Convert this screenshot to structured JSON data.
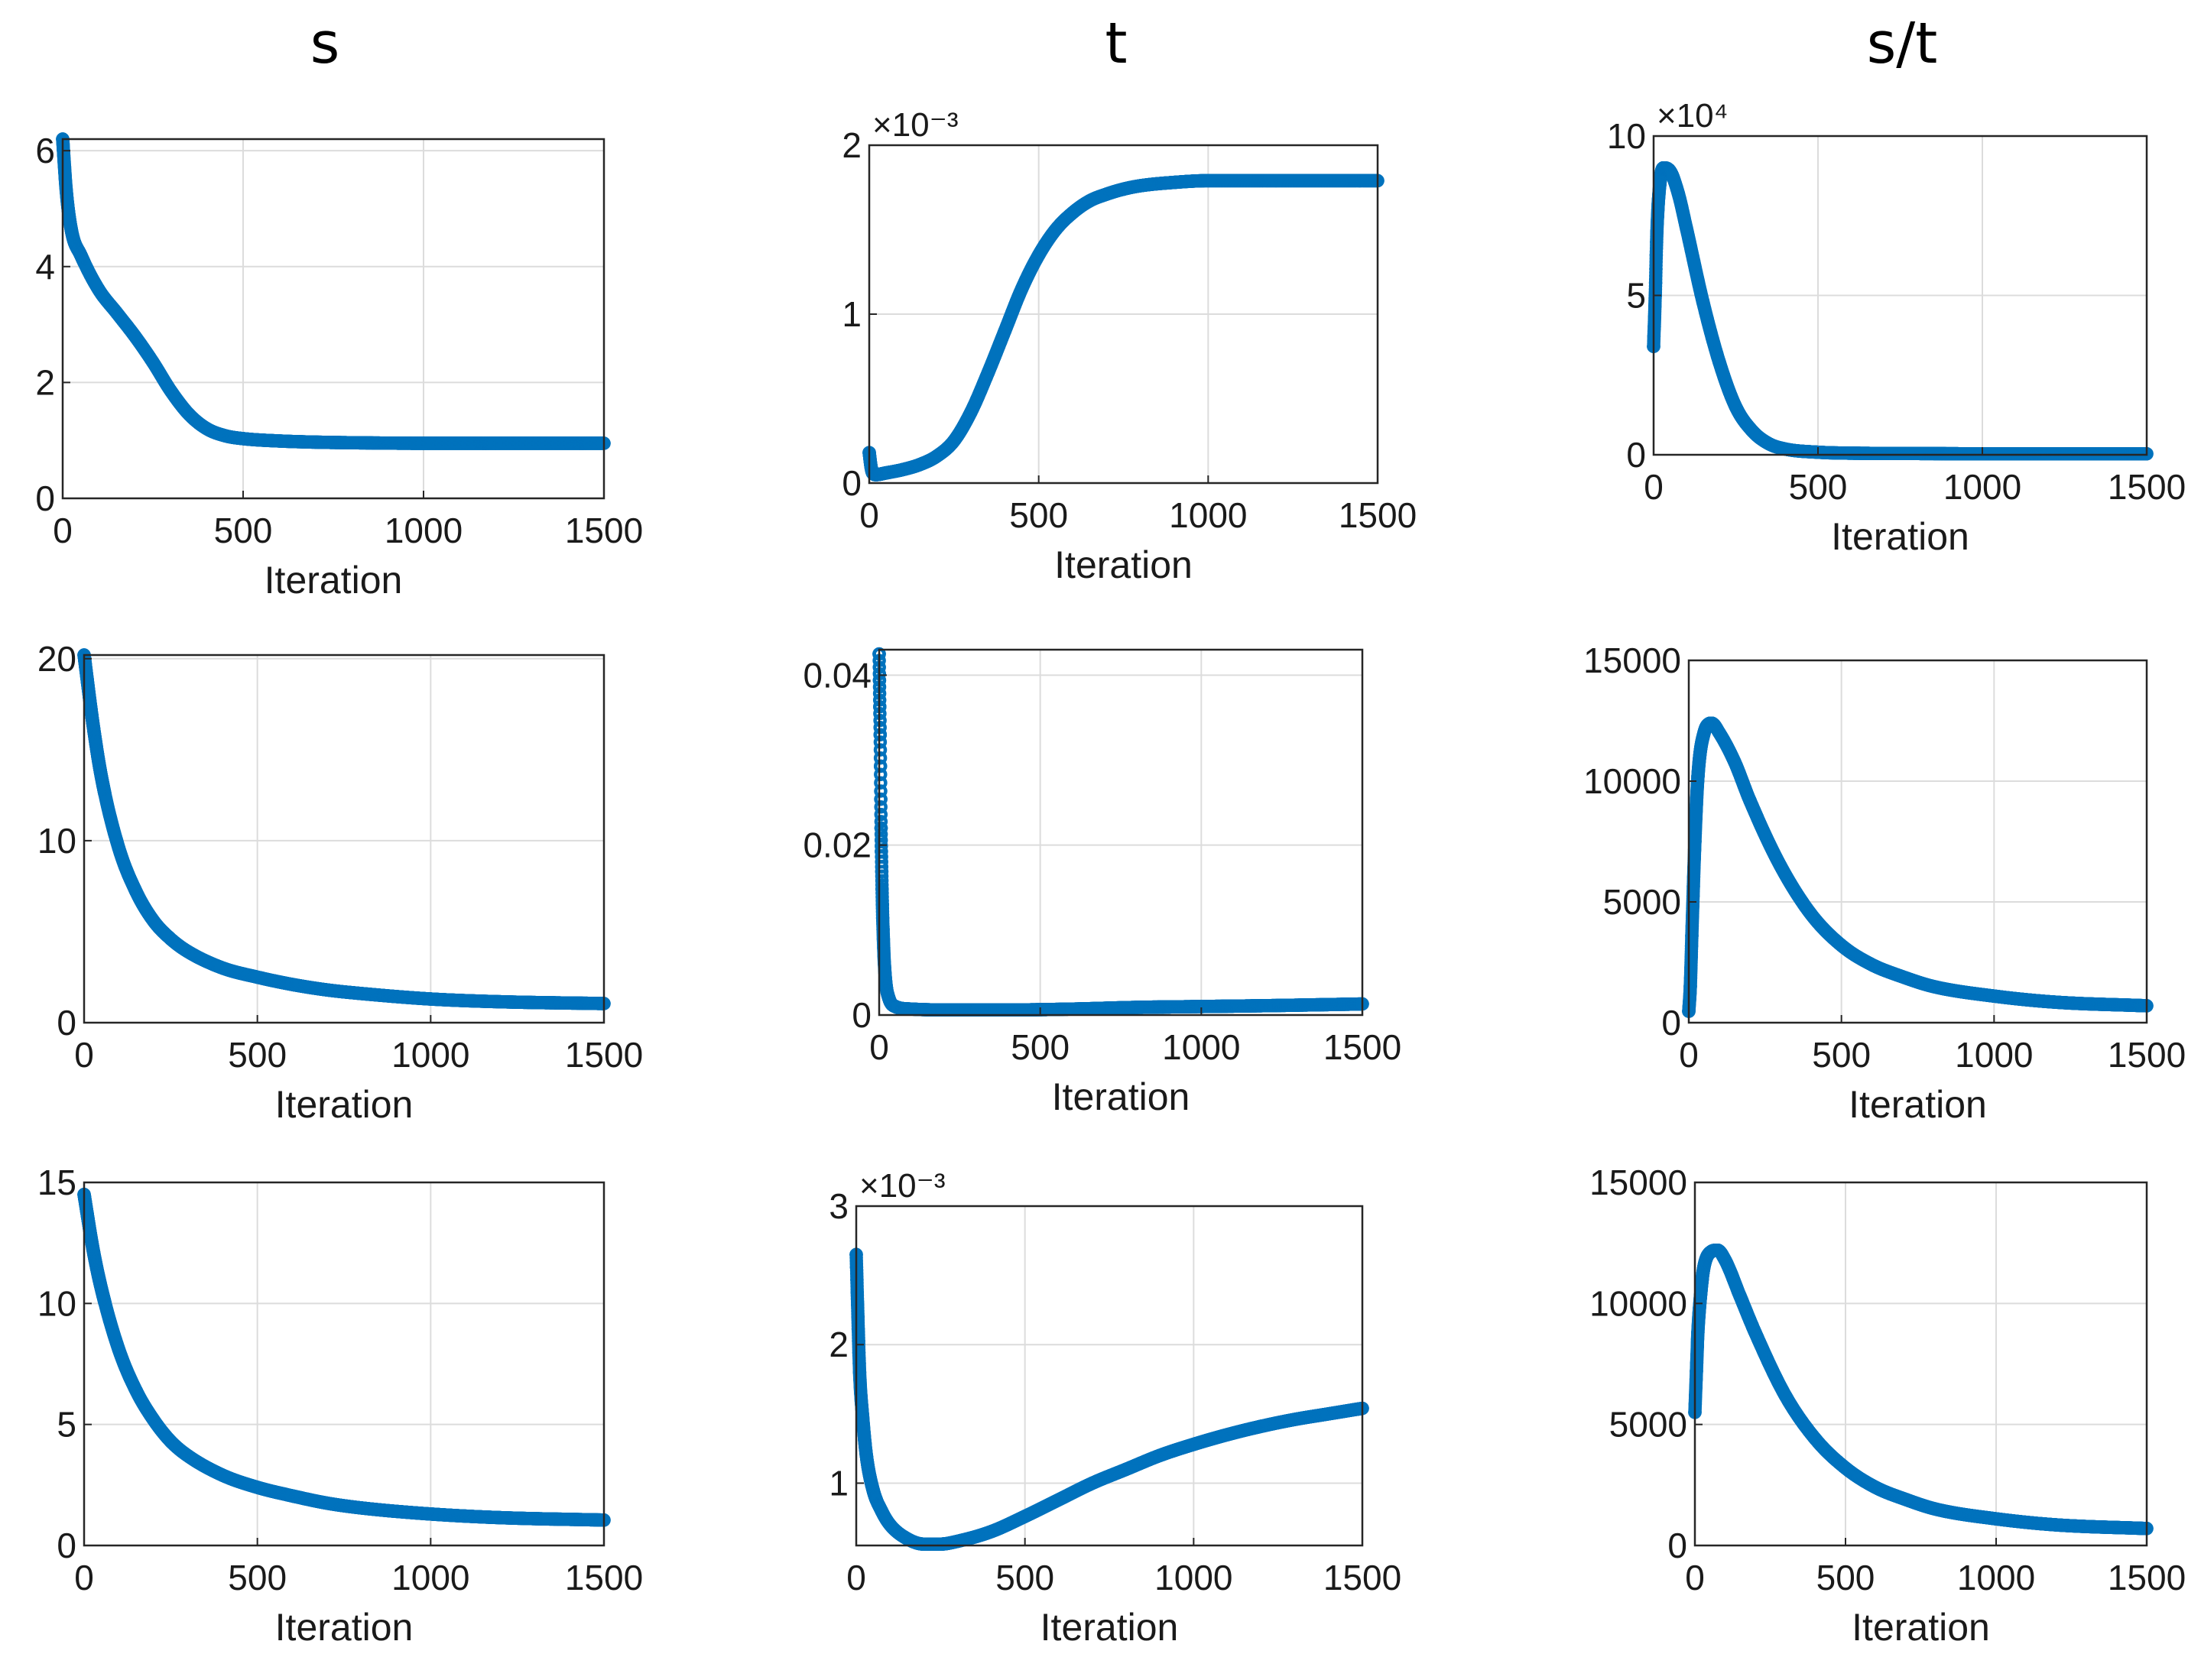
{
  "column_titles": [
    "s",
    "t",
    "s/t"
  ],
  "series_color": "#0072BD",
  "chart_data": [
    {
      "type": "scatter",
      "title": "s",
      "row": 1,
      "col": 1,
      "xlabel": "Iteration",
      "ylabel": "",
      "xlim": [
        0,
        1500
      ],
      "ylim": [
        0,
        6.2
      ],
      "xticks": [
        0,
        500,
        1000,
        1500
      ],
      "yticks": [
        0,
        2,
        4,
        6
      ],
      "ytick_labels": [
        "0",
        "2",
        "4",
        "6"
      ],
      "exponent_label": "",
      "grid": true,
      "x": [
        0,
        10,
        25,
        50,
        100,
        150,
        200,
        250,
        300,
        350,
        400,
        450,
        500,
        600,
        700,
        800,
        1000,
        1200,
        1500
      ],
      "y": [
        6.2,
        5.3,
        4.6,
        4.2,
        3.6,
        3.2,
        2.8,
        2.35,
        1.85,
        1.45,
        1.2,
        1.08,
        1.03,
        0.99,
        0.97,
        0.96,
        0.95,
        0.95,
        0.95
      ]
    },
    {
      "type": "scatter",
      "title": "t",
      "row": 1,
      "col": 2,
      "xlabel": "Iteration",
      "ylabel": "",
      "xlim": [
        0,
        1500
      ],
      "ylim": [
        0,
        2
      ],
      "xticks": [
        0,
        500,
        1000,
        1500
      ],
      "yticks": [
        0,
        1,
        2
      ],
      "ytick_labels": [
        "0",
        "1",
        "2"
      ],
      "exponent_label": "×10⁻³",
      "grid": true,
      "x": [
        0,
        5,
        10,
        20,
        50,
        100,
        150,
        200,
        250,
        300,
        350,
        400,
        450,
        500,
        550,
        600,
        650,
        700,
        750,
        800,
        900,
        1000,
        1200,
        1500
      ],
      "y": [
        0.18,
        0.1,
        0.06,
        0.05,
        0.06,
        0.08,
        0.11,
        0.16,
        0.25,
        0.42,
        0.65,
        0.9,
        1.15,
        1.35,
        1.5,
        1.6,
        1.67,
        1.71,
        1.74,
        1.76,
        1.78,
        1.79,
        1.79,
        1.79
      ]
    },
    {
      "type": "scatter",
      "title": "s/t",
      "row": 1,
      "col": 3,
      "xlabel": "Iteration",
      "ylabel": "",
      "xlim": [
        0,
        1500
      ],
      "ylim": [
        0,
        10
      ],
      "xticks": [
        0,
        500,
        1000,
        1500
      ],
      "yticks": [
        0,
        5,
        10
      ],
      "ytick_labels": [
        "0",
        "5",
        "10"
      ],
      "exponent_label": "×10⁴",
      "grid": true,
      "x": [
        0,
        5,
        10,
        20,
        30,
        50,
        75,
        100,
        150,
        200,
        250,
        300,
        350,
        400,
        500,
        600,
        800,
        1000,
        1200,
        1500
      ],
      "y": [
        3.4,
        5,
        7,
        8.6,
        9,
        8.9,
        8.2,
        7.1,
        4.8,
        2.9,
        1.5,
        0.75,
        0.35,
        0.18,
        0.08,
        0.05,
        0.04,
        0.03,
        0.03,
        0.03
      ]
    },
    {
      "type": "scatter",
      "title": "s",
      "row": 2,
      "col": 1,
      "xlabel": "Iteration",
      "ylabel": "",
      "xlim": [
        0,
        1500
      ],
      "ylim": [
        0,
        20.2
      ],
      "xticks": [
        0,
        500,
        1000,
        1500
      ],
      "yticks": [
        0,
        10,
        20
      ],
      "ytick_labels": [
        "0",
        "10",
        "20"
      ],
      "exponent_label": "",
      "grid": true,
      "x": [
        0,
        25,
        50,
        100,
        150,
        200,
        250,
        300,
        400,
        500,
        600,
        700,
        800,
        1000,
        1200,
        1500
      ],
      "y": [
        20.2,
        16.5,
        13.5,
        9.6,
        7.2,
        5.6,
        4.6,
        3.9,
        3.0,
        2.5,
        2.1,
        1.8,
        1.6,
        1.3,
        1.15,
        1.05
      ]
    },
    {
      "type": "scatter",
      "title": "t",
      "row": 2,
      "col": 2,
      "xlabel": "Iteration",
      "ylabel": "",
      "xlim": [
        0,
        1500
      ],
      "ylim": [
        0,
        0.043
      ],
      "xticks": [
        0,
        500,
        1000,
        1500
      ],
      "yticks": [
        0,
        0.02,
        0.04
      ],
      "ytick_labels": [
        "0",
        "0.02",
        "0.04"
      ],
      "exponent_label": "",
      "grid": true,
      "x": [
        0,
        3,
        6,
        10,
        15,
        20,
        30,
        50,
        100,
        200,
        400,
        600,
        800,
        1000,
        1200,
        1500
      ],
      "y": [
        0.0425,
        0.033,
        0.022,
        0.013,
        0.007,
        0.004,
        0.002,
        0.001,
        0.0007,
        0.0006,
        0.0006,
        0.0007,
        0.0009,
        0.001,
        0.0011,
        0.0013
      ]
    },
    {
      "type": "scatter",
      "title": "s/t",
      "row": 2,
      "col": 3,
      "xlabel": "Iteration",
      "ylabel": "",
      "xlim": [
        0,
        1500
      ],
      "ylim": [
        0,
        15000
      ],
      "xticks": [
        0,
        500,
        1000,
        1500
      ],
      "yticks": [
        0,
        5000,
        10000,
        15000
      ],
      "ytick_labels": [
        "0",
        "5000",
        "10000",
        "15000"
      ],
      "exponent_label": "",
      "grid": true,
      "x": [
        0,
        5,
        10,
        20,
        30,
        50,
        75,
        100,
        150,
        200,
        300,
        400,
        500,
        600,
        700,
        800,
        1000,
        1200,
        1500
      ],
      "y": [
        470,
        1500,
        3600,
        7500,
        10200,
        12000,
        12400,
        12000,
        10800,
        9200,
        6500,
        4500,
        3200,
        2400,
        1900,
        1500,
        1100,
        850,
        700
      ]
    },
    {
      "type": "scatter",
      "title": "s",
      "row": 3,
      "col": 1,
      "xlabel": "Iteration",
      "ylabel": "",
      "xlim": [
        0,
        1500
      ],
      "ylim": [
        0,
        15
      ],
      "xticks": [
        0,
        500,
        1000,
        1500
      ],
      "yticks": [
        0,
        5,
        10,
        15
      ],
      "ytick_labels": [
        "0",
        "5",
        "10",
        "15"
      ],
      "exponent_label": "",
      "grid": true,
      "x": [
        0,
        25,
        50,
        100,
        150,
        200,
        250,
        300,
        400,
        500,
        600,
        700,
        800,
        1000,
        1200,
        1500
      ],
      "y": [
        14.5,
        12.3,
        10.6,
        8.1,
        6.4,
        5.2,
        4.3,
        3.7,
        2.9,
        2.4,
        2.05,
        1.75,
        1.55,
        1.3,
        1.15,
        1.05
      ]
    },
    {
      "type": "scatter",
      "title": "t",
      "row": 3,
      "col": 2,
      "xlabel": "Iteration",
      "ylabel": "",
      "xlim": [
        0,
        1500
      ],
      "ylim": [
        0.55,
        3
      ],
      "xticks": [
        0,
        500,
        1000,
        1500
      ],
      "yticks": [
        1,
        2,
        3
      ],
      "ytick_labels": [
        "1",
        "2",
        "3"
      ],
      "exponent_label": "×10⁻³",
      "grid": true,
      "x": [
        0,
        5,
        10,
        20,
        30,
        50,
        75,
        100,
        150,
        200,
        250,
        300,
        400,
        500,
        600,
        700,
        800,
        900,
        1000,
        1100,
        1200,
        1300,
        1400,
        1500
      ],
      "y": [
        2.65,
        2.2,
        1.8,
        1.45,
        1.2,
        0.95,
        0.8,
        0.7,
        0.6,
        0.56,
        0.56,
        0.58,
        0.65,
        0.76,
        0.88,
        1.0,
        1.1,
        1.2,
        1.28,
        1.35,
        1.41,
        1.46,
        1.5,
        1.54
      ]
    },
    {
      "type": "scatter",
      "title": "s/t",
      "row": 3,
      "col": 3,
      "xlabel": "Iteration",
      "ylabel": "",
      "xlim": [
        0,
        1500
      ],
      "ylim": [
        0,
        15000
      ],
      "xticks": [
        0,
        500,
        1000,
        1500
      ],
      "yticks": [
        0,
        5000,
        10000,
        15000
      ],
      "ytick_labels": [
        "0",
        "5000",
        "10000",
        "15000"
      ],
      "exponent_label": "",
      "grid": true,
      "x": [
        0,
        5,
        10,
        20,
        30,
        50,
        75,
        100,
        150,
        200,
        300,
        400,
        500,
        600,
        700,
        800,
        1000,
        1200,
        1500
      ],
      "y": [
        5500,
        7200,
        8800,
        10500,
        11500,
        12100,
        12200,
        11800,
        10300,
        8800,
        6200,
        4400,
        3200,
        2400,
        1900,
        1500,
        1100,
        850,
        700
      ]
    }
  ]
}
